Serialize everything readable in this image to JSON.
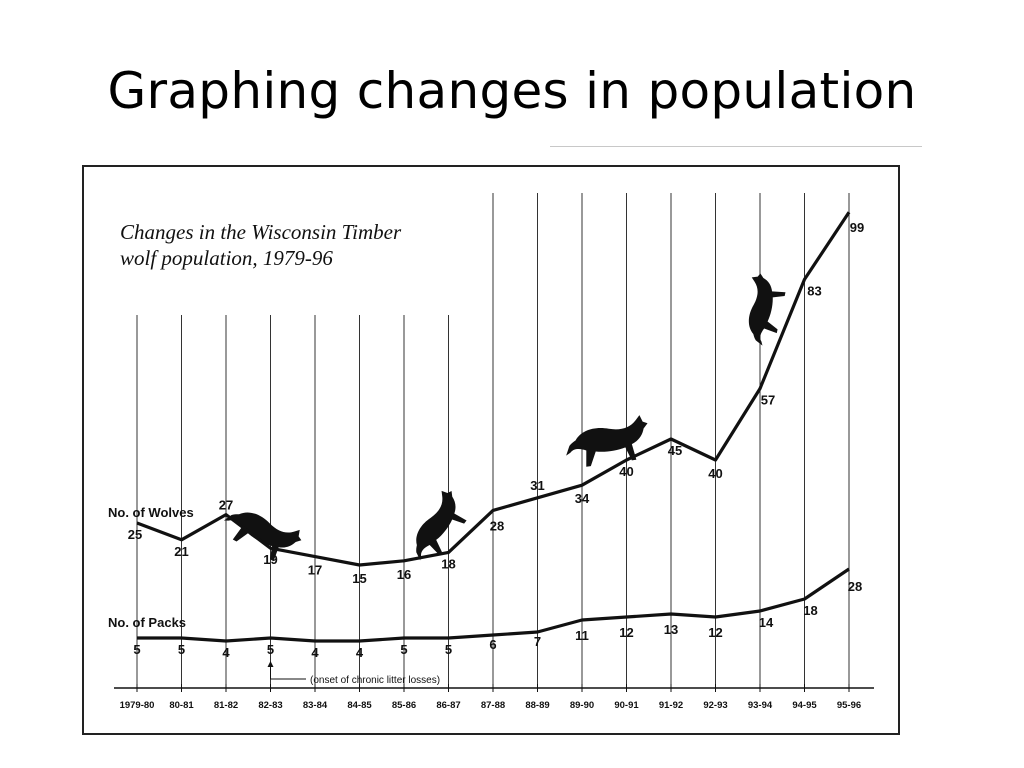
{
  "slide": {
    "title": "Graphing changes in population"
  },
  "chart_data": {
    "type": "line",
    "title": "Changes in the Wisconsin Timber wolf population, 1979-96",
    "title_lines": [
      "Changes in the Wisconsin Timber",
      "wolf population, 1979-96"
    ],
    "categories": [
      "1979-80",
      "80-81",
      "81-82",
      "82-83",
      "83-84",
      "84-85",
      "85-86",
      "86-87",
      "87-88",
      "88-89",
      "89-90",
      "90-91",
      "91-92",
      "92-93",
      "93-94",
      "94-95",
      "95-96"
    ],
    "series": [
      {
        "name": "No. of Wolves",
        "values": [
          25,
          21,
          27,
          19,
          17,
          15,
          16,
          18,
          28,
          31,
          34,
          40,
          45,
          40,
          57,
          83,
          99
        ]
      },
      {
        "name": "No. of Packs",
        "values": [
          5,
          5,
          4,
          5,
          4,
          4,
          5,
          5,
          6,
          7,
          11,
          12,
          13,
          12,
          14,
          18,
          28
        ]
      }
    ],
    "annotation": {
      "text": "(onset of chronic litter losses)",
      "category": "82-83"
    },
    "xlabel": "",
    "ylabel": "",
    "grid": "vertical",
    "legend": "inline labels",
    "colors": {
      "line": "#111111",
      "grid": "#333333"
    },
    "decorations": [
      "wolf-silhouette-icon"
    ]
  }
}
